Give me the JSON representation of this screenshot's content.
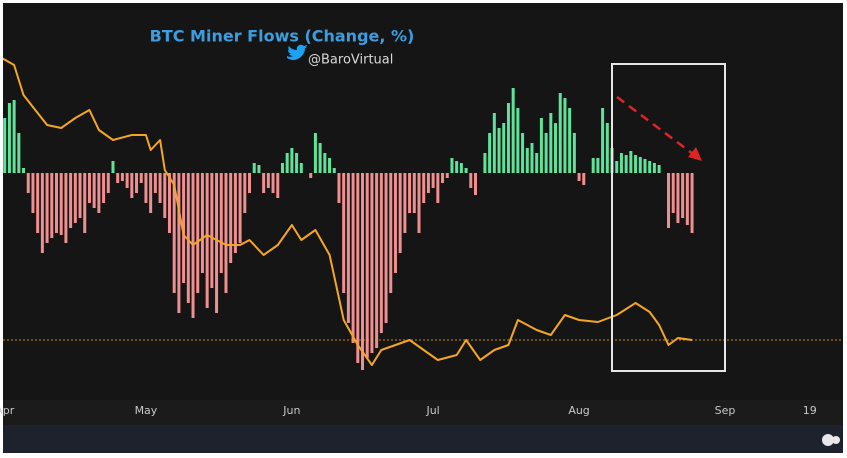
{
  "chart_data": {
    "type": "bar-line",
    "title": "BTC Miner Flows (Change, %)",
    "subtitle": "@BaroVirtual",
    "xlim": [
      -1,
      177
    ],
    "xticks": [
      {
        "value": 0,
        "label": "Apr"
      },
      {
        "value": 30,
        "label": "May"
      },
      {
        "value": 61,
        "label": "Jun"
      },
      {
        "value": 91,
        "label": "Jul"
      },
      {
        "value": 122,
        "label": "Aug"
      },
      {
        "value": 153,
        "label": "Sep"
      },
      {
        "value": 171,
        "label": "19"
      }
    ],
    "ylim": [
      -227,
      153
    ],
    "y2lim": [
      0,
      380
    ],
    "bars": {
      "up_color": "#5ee39b",
      "down_color": "#f08f8f",
      "x": [
        0,
        1,
        2,
        3,
        4,
        5,
        6,
        7,
        8,
        9,
        10,
        11,
        12,
        13,
        14,
        15,
        16,
        17,
        18,
        19,
        20,
        21,
        22,
        23,
        24,
        25,
        26,
        27,
        28,
        29,
        30,
        31,
        32,
        33,
        34,
        35,
        36,
        37,
        38,
        39,
        40,
        41,
        42,
        43,
        44,
        45,
        46,
        47,
        48,
        49,
        50,
        51,
        52,
        53,
        54,
        55,
        56,
        57,
        58,
        59,
        60,
        61,
        62,
        63,
        64,
        65,
        66,
        67,
        68,
        69,
        70,
        71,
        72,
        73,
        74,
        75,
        76,
        77,
        78,
        79,
        80,
        81,
        82,
        83,
        84,
        85,
        86,
        87,
        88,
        89,
        90,
        91,
        92,
        93,
        94,
        95,
        96,
        97,
        98,
        99,
        100,
        101,
        102,
        103,
        104,
        105,
        106,
        107,
        108,
        109,
        110,
        111,
        112,
        113,
        114,
        115,
        116,
        117,
        118,
        119,
        120,
        121,
        122,
        123,
        124,
        125,
        126,
        127,
        128,
        129,
        130,
        131,
        132,
        133,
        134,
        135,
        136,
        137,
        138,
        139,
        140,
        141,
        142,
        143,
        144,
        145,
        146
      ],
      "values": [
        55,
        70,
        73,
        40,
        5,
        -20,
        -40,
        -60,
        -80,
        -70,
        -65,
        -60,
        -62,
        -70,
        -55,
        -50,
        -45,
        -60,
        -30,
        -35,
        -40,
        -30,
        -20,
        12,
        -10,
        -8,
        -15,
        -25,
        -20,
        -10,
        -30,
        -40,
        -20,
        -30,
        -45,
        -60,
        -120,
        -140,
        -110,
        -130,
        -145,
        -120,
        -100,
        -135,
        -115,
        -140,
        -100,
        -120,
        -90,
        -80,
        -70,
        -40,
        -20,
        10,
        8,
        -20,
        -15,
        -20,
        -25,
        10,
        20,
        25,
        20,
        10,
        0,
        -5,
        40,
        30,
        20,
        15,
        5,
        -30,
        -120,
        -150,
        -170,
        -190,
        -197,
        -185,
        -180,
        -175,
        -160,
        -150,
        -120,
        -100,
        -80,
        -60,
        -40,
        -40,
        -60,
        -30,
        -20,
        -15,
        -30,
        -10,
        -5,
        15,
        12,
        10,
        5,
        -15,
        -22,
        0,
        20,
        40,
        60,
        45,
        50,
        70,
        85,
        65,
        40,
        25,
        30,
        20,
        55,
        40,
        60,
        50,
        80,
        75,
        65,
        40,
        -8,
        -12,
        0,
        15,
        15,
        65,
        50,
        25,
        12,
        20,
        18,
        22,
        18,
        16,
        14,
        12,
        10,
        8,
        0,
        -55,
        -40,
        -50,
        -45,
        -52,
        -60
      ]
    },
    "line": {
      "axis": "y2",
      "color": "#f5a623",
      "x": [
        -1,
        2,
        4,
        9,
        12,
        15,
        18,
        20,
        23,
        27,
        30,
        31,
        33,
        34,
        36,
        38,
        40,
        43,
        45,
        47,
        50,
        52,
        55,
        58,
        61,
        63,
        66,
        69,
        72,
        75,
        78,
        80,
        83,
        86,
        89,
        92,
        96,
        98,
        101,
        104,
        107,
        109,
        113,
        116,
        119,
        122,
        126,
        130,
        134,
        137,
        139,
        141,
        143,
        146
      ],
      "values": [
        343,
        335,
        305,
        275,
        272,
        282,
        290,
        270,
        260,
        265,
        265,
        250,
        260,
        230,
        215,
        165,
        155,
        165,
        160,
        155,
        155,
        160,
        145,
        155,
        175,
        160,
        170,
        145,
        80,
        55,
        35,
        50,
        55,
        60,
        50,
        40,
        45,
        60,
        40,
        50,
        55,
        80,
        70,
        65,
        85,
        80,
        78,
        85,
        97,
        88,
        75,
        55,
        62,
        60
      ],
      "reference_line": 60
    }
  }
}
